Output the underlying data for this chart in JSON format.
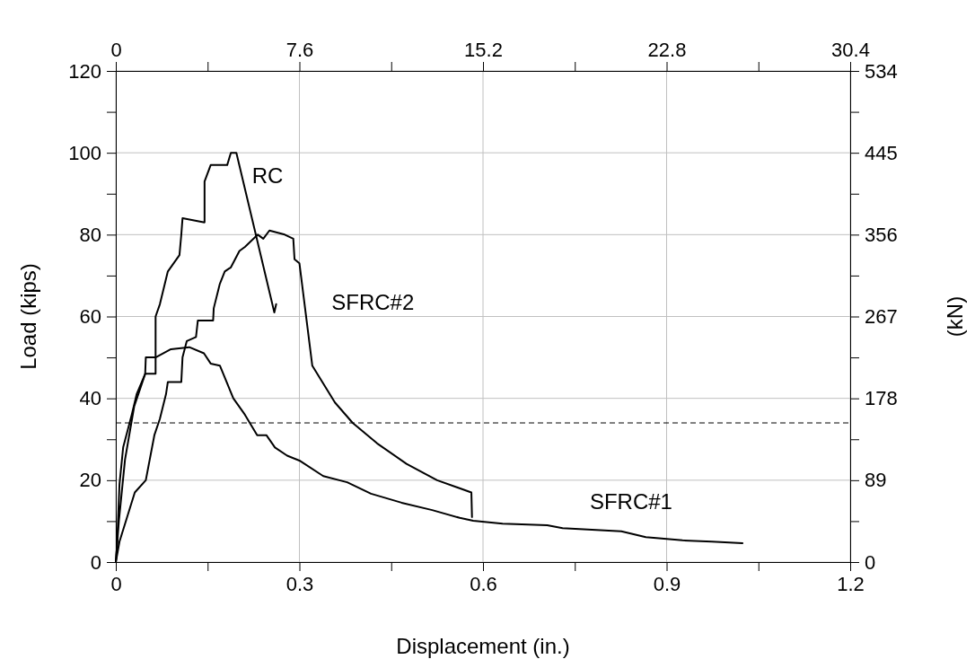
{
  "chart_data": {
    "type": "line",
    "xlabel": "Displacement (in.)",
    "ylabel": "Load (kips)",
    "y2label": "(kN)",
    "xlim": [
      0,
      1.2
    ],
    "xticks": [
      0,
      {
        "value": 0.15,
        "label": null
      },
      0.3,
      {
        "value": 0.45,
        "label": null
      },
      0.6,
      {
        "value": 0.75,
        "label": null
      },
      0.9,
      {
        "value": 1.05,
        "label": null
      },
      1.2
    ],
    "ylim": [
      0,
      120
    ],
    "yticks": [
      0,
      {
        "value": 10,
        "label": null
      },
      20,
      {
        "value": 30,
        "label": null
      },
      40,
      {
        "value": 50,
        "label": null
      },
      60,
      {
        "value": 70,
        "label": null
      },
      80,
      {
        "value": 90,
        "label": null
      },
      100,
      {
        "value": 110,
        "label": null
      },
      120
    ],
    "x2lim": [
      0,
      30.4
    ],
    "x2ticks": [
      0,
      {
        "value": 3.8,
        "label": null
      },
      7.6,
      {
        "value": 11.4,
        "label": null
      },
      15.2,
      {
        "value": 19,
        "label": null
      },
      22.8,
      {
        "value": 26.6,
        "label": null
      },
      30.4
    ],
    "y2lim": [
      0,
      534
    ],
    "y2ticks": [
      0,
      {
        "value": 44.5,
        "label": null
      },
      89,
      {
        "value": 133.5,
        "label": null
      },
      178,
      {
        "value": 222.5,
        "label": null
      },
      267,
      {
        "value": 311.5,
        "label": null
      },
      356,
      {
        "value": 400.5,
        "label": null
      },
      445,
      {
        "value": 489.5,
        "label": null
      },
      534
    ],
    "grid": true,
    "legend": false,
    "marker": "none",
    "line_style": "solid",
    "ref_lines": [
      {
        "axis": "y",
        "value": 34,
        "color": "#000000",
        "line_style": "dashed"
      }
    ],
    "series": [
      {
        "name": "RC",
        "color": "#000000",
        "x": [
          0,
          0.002,
          0.006,
          0.012,
          0.026,
          0.034,
          0.048,
          0.049,
          0.065,
          0.065,
          0.072,
          0.085,
          0.104,
          0.107,
          0.109,
          0.145,
          0.145,
          0.155,
          0.182,
          0.188,
          0.197,
          0.259,
          0.262
        ],
        "values": [
          0,
          4,
          19,
          28,
          36,
          41,
          46,
          50,
          50,
          60,
          63,
          71,
          75,
          80,
          84,
          83,
          93,
          97,
          97,
          100,
          100,
          61,
          63
        ]
      },
      {
        "name": "SFRC#2",
        "color": "#000000",
        "x": [
          0,
          0.006,
          0.031,
          0.049,
          0.063,
          0.072,
          0.082,
          0.085,
          0.107,
          0.109,
          0.116,
          0.131,
          0.134,
          0.159,
          0.16,
          0.17,
          0.178,
          0.188,
          0.202,
          0.211,
          0.232,
          0.241,
          0.251,
          0.276,
          0.29,
          0.292,
          0.3,
          0.321,
          0.358,
          0.387,
          0.427,
          0.475,
          0.525,
          0.581,
          0.582
        ],
        "values": [
          0,
          5,
          17,
          20,
          31,
          35,
          41,
          44,
          44,
          50,
          54,
          55,
          59,
          59,
          62,
          68,
          71,
          72,
          76,
          77,
          80,
          79,
          81,
          80,
          79,
          74,
          73,
          48,
          39,
          34,
          29,
          24,
          20,
          17,
          11
        ]
      },
      {
        "name": "SFRC#1",
        "color": "#000000",
        "x": [
          0,
          0.005,
          0.015,
          0.03,
          0.048,
          0.065,
          0.065,
          0.09,
          0.12,
          0.144,
          0.155,
          0.17,
          0.192,
          0.211,
          0.231,
          0.246,
          0.26,
          0.28,
          0.3,
          0.339,
          0.378,
          0.417,
          0.467,
          0.517,
          0.562,
          0.584,
          0.632,
          0.705,
          0.73,
          0.826,
          0.866,
          0.926,
          0.974,
          1.024
        ],
        "values": [
          0,
          10,
          25,
          38,
          46,
          46,
          50,
          52,
          52.5,
          51,
          48.5,
          48,
          40,
          36,
          31,
          31,
          28,
          26,
          24.8,
          21,
          19.5,
          16.7,
          14.5,
          12.7,
          10.8,
          10.1,
          9.4,
          9,
          8.3,
          7.5,
          6.1,
          5.3,
          5,
          4.6
        ]
      }
    ]
  }
}
